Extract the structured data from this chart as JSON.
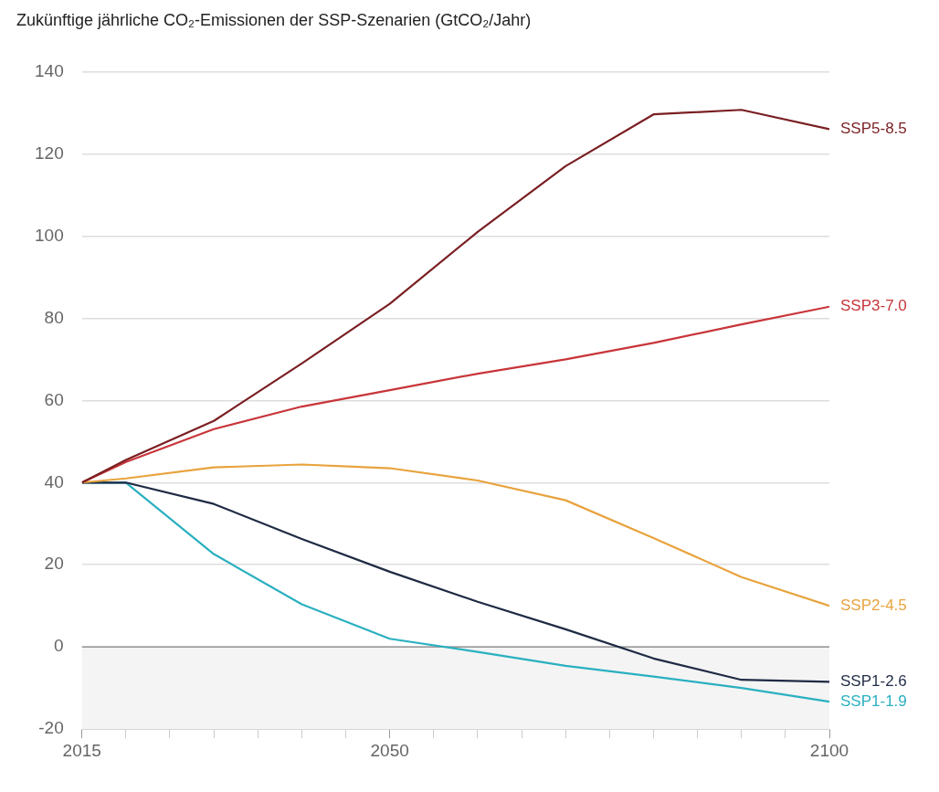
{
  "chart_data": {
    "type": "line",
    "title": "Zukünftige jährliche CO₂-Emissionen der SSP-Szenarien (GtCO₂/Jahr)",
    "x": [
      2015,
      2020,
      2030,
      2040,
      2050,
      2060,
      2070,
      2080,
      2090,
      2100
    ],
    "series": [
      {
        "name": "SSP5-8.5",
        "color": "#7a1f22",
        "values": [
          40,
          45.5,
          55,
          69,
          83.5,
          101,
          117,
          129.6,
          130.7,
          126
        ]
      },
      {
        "name": "SSP3-7.0",
        "color": "#c8353a",
        "values": [
          40,
          45,
          53,
          58.5,
          62.5,
          66.5,
          70,
          74,
          78.5,
          82.8
        ]
      },
      {
        "name": "SSP2-4.5",
        "color": "#e8a33d",
        "values": [
          40,
          41,
          43.7,
          44.4,
          43.5,
          40.5,
          35.7,
          26.5,
          17,
          10
        ]
      },
      {
        "name": "SSP1-2.6",
        "color": "#1f2a44",
        "values": [
          40,
          40,
          34.8,
          26.3,
          18.3,
          11,
          4.3,
          -2.8,
          -8,
          -8.5
        ]
      },
      {
        "name": "SSP1-1.9",
        "color": "#2ab0c0",
        "values": [
          40,
          40,
          22.6,
          10.4,
          2,
          -1.2,
          -4.6,
          -7.2,
          -10,
          -13.3
        ]
      }
    ],
    "xlim": [
      2015,
      2100
    ],
    "xticks": [
      2015,
      {
        "value": 2020,
        "label": null
      },
      {
        "value": 2025,
        "label": null
      },
      {
        "value": 2030,
        "label": null
      },
      {
        "value": 2035,
        "label": null
      },
      {
        "value": 2040,
        "label": null
      },
      {
        "value": 2045,
        "label": null
      },
      2050,
      {
        "value": 2055,
        "label": null
      },
      {
        "value": 2060,
        "label": null
      },
      {
        "value": 2065,
        "label": null
      },
      {
        "value": 2070,
        "label": null
      },
      {
        "value": 2075,
        "label": null
      },
      {
        "value": 2080,
        "label": null
      },
      {
        "value": 2085,
        "label": null
      },
      {
        "value": 2090,
        "label": null
      },
      {
        "value": 2095,
        "label": null
      },
      2100
    ],
    "ylim": [
      -20,
      140
    ],
    "yticks": [
      -20,
      0,
      20,
      40,
      60,
      80,
      100,
      120,
      140
    ],
    "grid": "y",
    "legend": false,
    "marker": "none",
    "line_style": "solid",
    "bands": [
      {
        "axis": "y",
        "from": -20,
        "to": 0,
        "color": "#f4f4f4"
      }
    ],
    "ref_lines": [
      {
        "axis": "y",
        "value": 0,
        "color": "#9a9a9a"
      }
    ]
  }
}
